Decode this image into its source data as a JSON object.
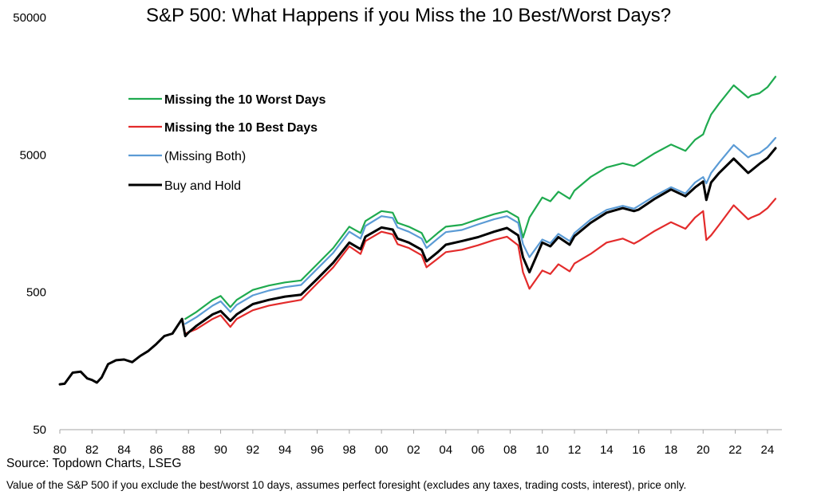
{
  "chart_data": {
    "type": "line",
    "title": "S&P 500: What Happens if you Miss the 10 Best/Worst Days?",
    "y_scale": "log",
    "ylim": [
      50,
      50000
    ],
    "xlim": [
      1980,
      2024.7
    ],
    "y_ticks": [
      {
        "value": 50,
        "label": "50"
      },
      {
        "value": 500,
        "label": "500"
      },
      {
        "value": 5000,
        "label": "5000"
      },
      {
        "value": 50000,
        "label": "50000"
      }
    ],
    "x_ticks": [
      {
        "value": 1980,
        "label": "80"
      },
      {
        "value": 1982,
        "label": "82"
      },
      {
        "value": 1984,
        "label": "84"
      },
      {
        "value": 1986,
        "label": "86"
      },
      {
        "value": 1988,
        "label": "88"
      },
      {
        "value": 1990,
        "label": "90"
      },
      {
        "value": 1992,
        "label": "92"
      },
      {
        "value": 1994,
        "label": "94"
      },
      {
        "value": 1996,
        "label": "96"
      },
      {
        "value": 1998,
        "label": "98"
      },
      {
        "value": 2000,
        "label": "00"
      },
      {
        "value": 2002,
        "label": "02"
      },
      {
        "value": 2004,
        "label": "04"
      },
      {
        "value": 2006,
        "label": "06"
      },
      {
        "value": 2008,
        "label": "08"
      },
      {
        "value": 2010,
        "label": "10"
      },
      {
        "value": 2012,
        "label": "12"
      },
      {
        "value": 2014,
        "label": "14"
      },
      {
        "value": 2016,
        "label": "16"
      },
      {
        "value": 2018,
        "label": "18"
      },
      {
        "value": 2020,
        "label": "20"
      },
      {
        "value": 2022,
        "label": "22"
      },
      {
        "value": 2024,
        "label": "24"
      }
    ],
    "grid": false,
    "legend_position": "top-left",
    "series": [
      {
        "name": "Missing the 10 Worst Days",
        "color": "#1faa4f",
        "bold": true,
        "x": [
          1987.8,
          1988.5,
          1989.5,
          1990.0,
          1990.6,
          1991.0,
          1992.0,
          1993.0,
          1994.0,
          1995.0,
          1996.0,
          1997.0,
          1998.0,
          1998.7,
          1999.0,
          2000.0,
          2000.7,
          2001.0,
          2001.7,
          2002.5,
          2002.8,
          2003.5,
          2004.0,
          2005.0,
          2006.0,
          2007.0,
          2007.8,
          2008.5,
          2008.8,
          2009.2,
          2010.0,
          2010.5,
          2011.0,
          2011.7,
          2012.0,
          2013.0,
          2014.0,
          2015.0,
          2015.7,
          2016.0,
          2017.0,
          2018.0,
          2018.9,
          2019.5,
          2020.0,
          2020.2,
          2020.5,
          2021.0,
          2021.9,
          2022.8,
          2023.0,
          2023.5,
          2024.0,
          2024.5
        ],
        "y": [
          320,
          360,
          440,
          470,
          390,
          440,
          520,
          560,
          590,
          610,
          800,
          1050,
          1500,
          1350,
          1650,
          1950,
          1900,
          1600,
          1500,
          1350,
          1150,
          1350,
          1500,
          1550,
          1700,
          1850,
          1950,
          1750,
          1250,
          1750,
          2450,
          2300,
          2700,
          2400,
          2750,
          3450,
          4050,
          4350,
          4150,
          4350,
          5150,
          5950,
          5350,
          6450,
          7050,
          8150,
          9850,
          11850,
          16050,
          13050,
          13550,
          14050,
          15550,
          18550
        ]
      },
      {
        "name": "Missing the 10 Best Days",
        "color": "#e32b2b",
        "bold": true,
        "x": [
          1987.8,
          1988.5,
          1989.5,
          1990.0,
          1990.6,
          1991.0,
          1992.0,
          1993.0,
          1994.0,
          1995.0,
          1996.0,
          1997.0,
          1998.0,
          1998.7,
          1999.0,
          2000.0,
          2000.7,
          2001.0,
          2001.7,
          2002.5,
          2002.8,
          2003.5,
          2004.0,
          2005.0,
          2006.0,
          2007.0,
          2007.8,
          2008.5,
          2008.8,
          2009.2,
          2010.0,
          2010.5,
          2011.0,
          2011.7,
          2012.0,
          2013.0,
          2014.0,
          2015.0,
          2015.7,
          2016.0,
          2017.0,
          2018.0,
          2018.9,
          2019.5,
          2020.0,
          2020.2,
          2020.5,
          2021.0,
          2021.9,
          2022.8,
          2023.0,
          2023.5,
          2024.0,
          2024.5
        ],
        "y": [
          250,
          270,
          320,
          340,
          280,
          320,
          370,
          400,
          420,
          440,
          580,
          760,
          1080,
          950,
          1180,
          1380,
          1320,
          1120,
          1050,
          930,
          760,
          880,
          980,
          1020,
          1100,
          1200,
          1270,
          1100,
          700,
          530,
          720,
          680,
          800,
          710,
          810,
          950,
          1150,
          1230,
          1130,
          1180,
          1400,
          1620,
          1450,
          1750,
          1950,
          1200,
          1300,
          1550,
          2150,
          1700,
          1750,
          1850,
          2050,
          2400
        ]
      },
      {
        "name": "(Missing Both)",
        "color": "#5b9bd5",
        "bold": false,
        "x": [
          1987.8,
          1988.5,
          1989.5,
          1990.0,
          1990.6,
          1991.0,
          1992.0,
          1993.0,
          1994.0,
          1995.0,
          1996.0,
          1997.0,
          1998.0,
          1998.7,
          1999.0,
          2000.0,
          2000.7,
          2001.0,
          2001.7,
          2002.5,
          2002.8,
          2003.5,
          2004.0,
          2005.0,
          2006.0,
          2007.0,
          2007.8,
          2008.5,
          2008.8,
          2009.2,
          2010.0,
          2010.5,
          2011.0,
          2011.7,
          2012.0,
          2013.0,
          2014.0,
          2015.0,
          2015.7,
          2016.0,
          2017.0,
          2018.0,
          2018.9,
          2019.5,
          2020.0,
          2020.2,
          2020.5,
          2021.0,
          2021.9,
          2022.8,
          2023.0,
          2023.5,
          2024.0,
          2024.5
        ],
        "y": [
          295,
          330,
          400,
          430,
          360,
          405,
          475,
          515,
          545,
          565,
          740,
          970,
          1380,
          1230,
          1520,
          1790,
          1740,
          1480,
          1380,
          1230,
          1050,
          1230,
          1370,
          1420,
          1560,
          1700,
          1790,
          1600,
          1120,
          900,
          1210,
          1140,
          1330,
          1180,
          1350,
          1690,
          1990,
          2130,
          2030,
          2130,
          2520,
          2910,
          2620,
          3150,
          3450,
          3100,
          3700,
          4400,
          5900,
          4800,
          4950,
          5150,
          5700,
          6650
        ]
      },
      {
        "name": "Buy and Hold",
        "color": "#000000",
        "bold": false,
        "x": [
          1980.0,
          1980.3,
          1980.8,
          1981.3,
          1981.7,
          1982.0,
          1982.3,
          1982.6,
          1983.0,
          1983.5,
          1984.0,
          1984.5,
          1985.0,
          1985.5,
          1986.0,
          1986.5,
          1987.0,
          1987.6,
          1987.8,
          1988.0,
          1988.5,
          1989.5,
          1990.0,
          1990.6,
          1991.0,
          1992.0,
          1993.0,
          1994.0,
          1995.0,
          1996.0,
          1997.0,
          1998.0,
          1998.7,
          1999.0,
          2000.0,
          2000.7,
          2001.0,
          2001.7,
          2002.5,
          2002.8,
          2003.5,
          2004.0,
          2005.0,
          2006.0,
          2007.0,
          2007.8,
          2008.5,
          2008.8,
          2009.2,
          2010.0,
          2010.5,
          2011.0,
          2011.7,
          2012.0,
          2013.0,
          2014.0,
          2015.0,
          2015.7,
          2016.0,
          2017.0,
          2018.0,
          2018.9,
          2019.5,
          2020.0,
          2020.2,
          2020.5,
          2021.0,
          2021.9,
          2022.8,
          2023.0,
          2023.5,
          2024.0,
          2024.5
        ],
        "y": [
          107,
          108,
          130,
          132,
          118,
          115,
          110,
          120,
          150,
          160,
          162,
          155,
          172,
          187,
          210,
          240,
          250,
          320,
          240,
          255,
          285,
          345,
          365,
          310,
          345,
          410,
          440,
          465,
          480,
          625,
          820,
          1150,
          1030,
          1270,
          1480,
          1430,
          1230,
          1150,
          1020,
          840,
          980,
          1110,
          1180,
          1260,
          1380,
          1470,
          1300,
          900,
          700,
          1150,
          1080,
          1260,
          1110,
          1280,
          1600,
          1900,
          2050,
          1950,
          2000,
          2400,
          2800,
          2500,
          2900,
          3200,
          2350,
          3150,
          3700,
          4700,
          3700,
          3850,
          4300,
          4750,
          5600
        ]
      }
    ]
  },
  "source": "Source: Topdown Charts, LSEG",
  "footnote": "Value of the S&P 500 if you exclude the best/worst 10 days, assumes perfect foresight (excludes any taxes, trading costs, interest), price only."
}
